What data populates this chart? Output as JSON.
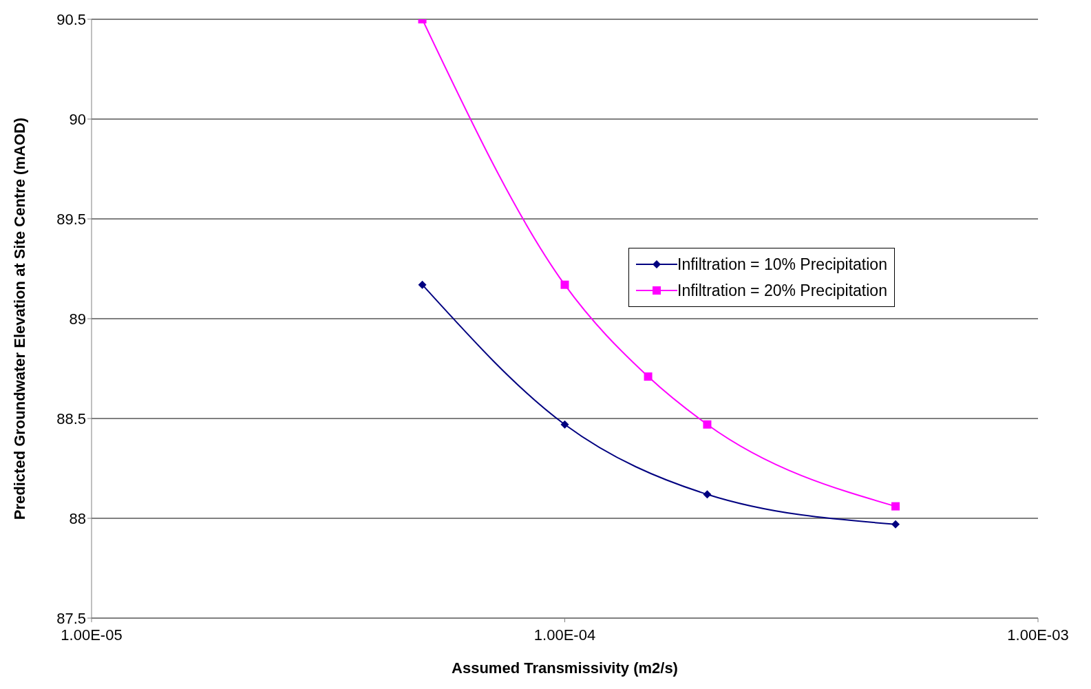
{
  "chart_data": {
    "type": "line",
    "xlabel": "Assumed Transmissivity (m2/s)",
    "ylabel": "Predicted Groundwater Elevation at Site Centre (mAOD)",
    "log": "x",
    "xlim": [
      1e-05,
      0.001
    ],
    "xticks": [
      {
        "value": 1e-05,
        "label": "1.00E-05"
      },
      {
        "value": 0.0001,
        "label": "1.00E-04"
      },
      {
        "value": 0.001,
        "label": "1.00E-03"
      }
    ],
    "ylim": [
      87.5,
      90.5
    ],
    "yticks": [
      87.5,
      88,
      88.5,
      89,
      89.5,
      90,
      90.5
    ],
    "grid": "y",
    "legend": "right",
    "line_style": "solid",
    "series": [
      {
        "name": "Infiltration = 10% Precipitation",
        "color": "#000080",
        "marker": "diamond",
        "x": [
          5e-05,
          0.0001,
          0.0002,
          0.0005
        ],
        "values": [
          89.17,
          88.47,
          88.12,
          87.97
        ]
      },
      {
        "name": "Infiltration = 20% Precipitation",
        "color": "#ff00ff",
        "marker": "square",
        "x": [
          5e-05,
          0.0001,
          0.00015,
          0.0002,
          0.0005
        ],
        "values": [
          90.5,
          89.17,
          88.71,
          88.47,
          88.06
        ]
      }
    ]
  }
}
